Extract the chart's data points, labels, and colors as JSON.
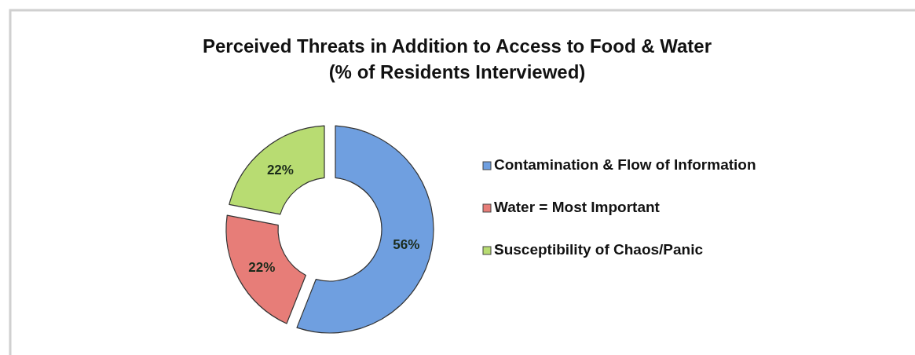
{
  "chart_data": {
    "type": "donut",
    "title": "Perceived Threats in Addition to Access to Food & Water",
    "subtitle": "(% of Residents Interviewed)",
    "categories": [
      "Contamination & Flow of Information",
      "Water = Most Important",
      "Susceptibility of Chaos/Panic"
    ],
    "values": [
      56,
      22,
      22
    ],
    "colors": [
      "#6f9fe0",
      "#e77d78",
      "#b8dc72"
    ],
    "value_labels": [
      "56%",
      "22%",
      "22%"
    ],
    "legend": "right"
  }
}
